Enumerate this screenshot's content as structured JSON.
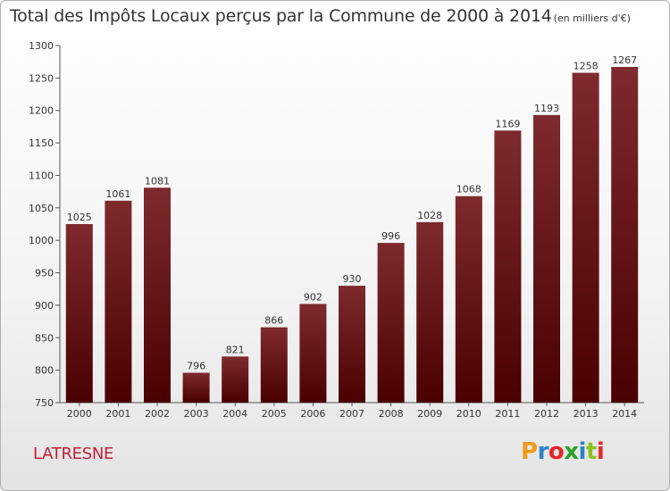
{
  "header": {
    "title": "Total des Impôts Locaux perçus par la Commune de 2000 à 2014",
    "subtitle": "(en milliers d'€)"
  },
  "commune": "LATRESNE",
  "logo": {
    "text": "Proxiti",
    "letters": [
      "P",
      "r",
      "o",
      "x",
      "i",
      "t",
      "i"
    ],
    "colors": [
      "#f29a1a",
      "#2a84c8",
      "#e5262a",
      "#2aa02a",
      "#2a84c8",
      "#8cc21e",
      "#e5262a"
    ]
  },
  "colors": {
    "bar_top": "#7e2a2e",
    "bar_bottom": "#4a0000",
    "accent": "#c0203a"
  },
  "chart_data": {
    "type": "bar",
    "title": "Total des Impôts Locaux perçus par la Commune de 2000 à 2014",
    "subtitle": "(en milliers d'€)",
    "categories": [
      "2000",
      "2001",
      "2002",
      "2003",
      "2004",
      "2005",
      "2006",
      "2007",
      "2008",
      "2009",
      "2010",
      "2011",
      "2012",
      "2013",
      "2014"
    ],
    "values": [
      1025,
      1061,
      1081,
      796,
      821,
      866,
      902,
      930,
      996,
      1028,
      1068,
      1169,
      1193,
      1258,
      1267
    ],
    "ylim": [
      750,
      1300
    ],
    "yticks": [
      750,
      800,
      850,
      900,
      950,
      1000,
      1050,
      1100,
      1150,
      1200,
      1250,
      1300
    ],
    "xlabel": "",
    "ylabel": "",
    "grid": false,
    "data_labels": true
  }
}
